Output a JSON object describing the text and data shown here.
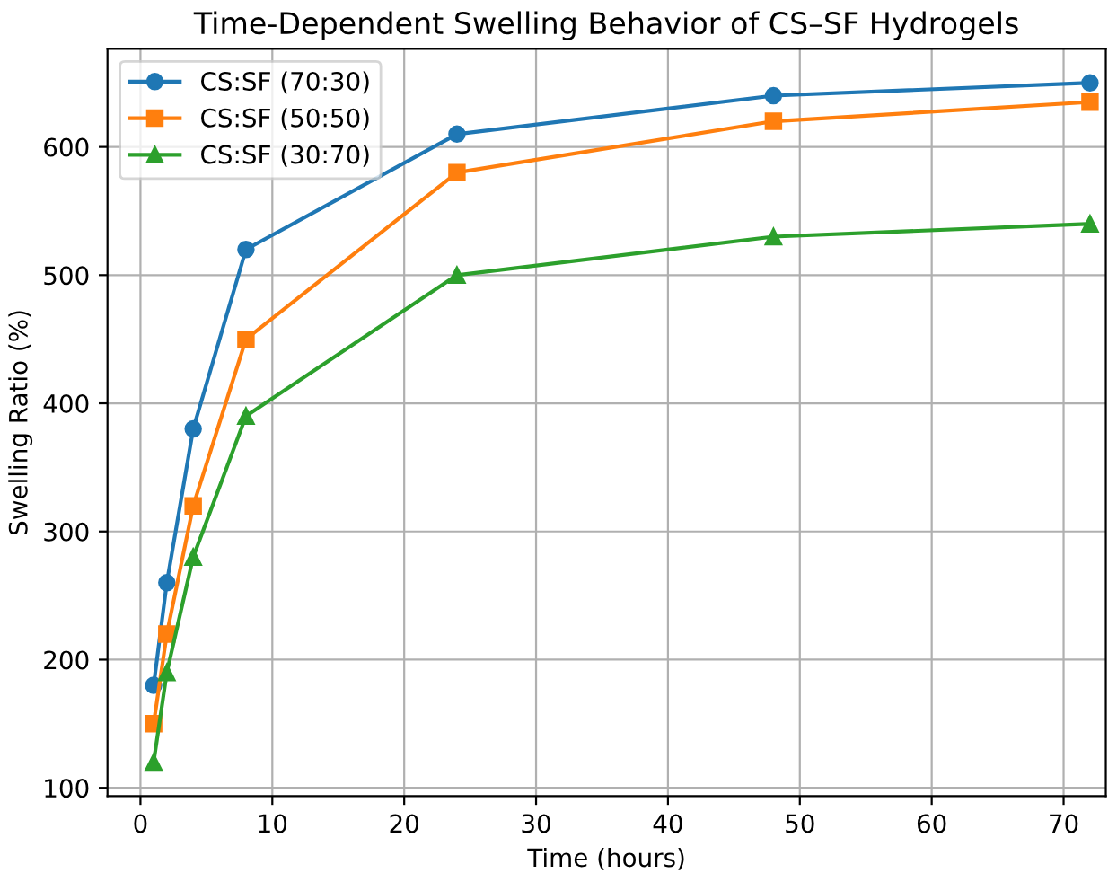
{
  "chart_data": {
    "type": "line",
    "title": "Time-Dependent Swelling Behavior of CS–SF Hydrogels",
    "xlabel": "Time (hours)",
    "ylabel": "Swelling Ratio (%)",
    "x": [
      1,
      2,
      4,
      8,
      24,
      48,
      72
    ],
    "series": [
      {
        "name": "CS:SF (70:30)",
        "color": "#1f77b4",
        "marker": "circle",
        "values": [
          180,
          260,
          380,
          520,
          610,
          640,
          650
        ]
      },
      {
        "name": "CS:SF (50:50)",
        "color": "#ff7f0e",
        "marker": "square",
        "values": [
          150,
          220,
          320,
          450,
          580,
          620,
          635
        ]
      },
      {
        "name": "CS:SF (30:70)",
        "color": "#2ca02c",
        "marker": "triangle",
        "values": [
          120,
          190,
          280,
          390,
          500,
          530,
          540
        ]
      }
    ],
    "xlim": [
      -2.5,
      73.2
    ],
    "ylim": [
      93.5,
      676.5
    ],
    "xticks": [
      0,
      10,
      20,
      30,
      40,
      50,
      60,
      70
    ],
    "yticks": [
      100,
      200,
      300,
      400,
      500,
      600
    ],
    "grid": true,
    "legend": "top left",
    "line_style": "solid"
  }
}
